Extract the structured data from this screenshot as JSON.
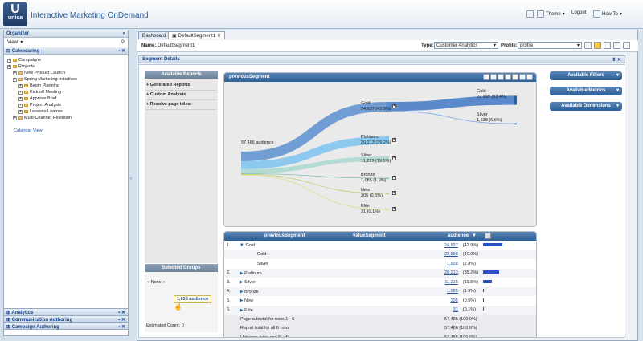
{
  "app": {
    "logo_letter": "U",
    "logo_word": "unica",
    "title": "Interactive Marketing OnDemand",
    "theme": "Theme",
    "logout": "Logout",
    "howto": "How To"
  },
  "organizer": {
    "title": "Organizer",
    "collapse": "«",
    "view": "View:",
    "section": "Calendaring",
    "tree": [
      {
        "label": "Campaigns",
        "indent": 0
      },
      {
        "label": "Projects",
        "indent": 0
      },
      {
        "label": "New Product Launch",
        "indent": 1
      },
      {
        "label": "Spring Marketing Initiatives",
        "indent": 1
      },
      {
        "label": "Begin Planning",
        "indent": 2
      },
      {
        "label": "Kick off Meeting",
        "indent": 2
      },
      {
        "label": "Approve Brief",
        "indent": 2
      },
      {
        "label": "Project Analysis",
        "indent": 2
      },
      {
        "label": "Lessons Learned",
        "indent": 2
      },
      {
        "label": "Multi-Channel Retention",
        "indent": 1
      }
    ],
    "calendar_link": "Calendar View",
    "bottom": [
      "Analytics",
      "Communication Authoring",
      "Campaign Authoring"
    ]
  },
  "tabs": [
    "Dashboard",
    "DefaultSegment1"
  ],
  "toolbar": {
    "name_label": "Name:",
    "name_value": "DefaultSegment1",
    "type_label": "Type:",
    "type_value": "Customer Analytics",
    "profile_label": "Profile:",
    "profile_value": "profile"
  },
  "segment_details": "Segment Details",
  "available_reports": {
    "title": "Available Reports",
    "items": [
      "Generated Reports",
      "Custom Analysis",
      "Resolve page titles:"
    ]
  },
  "selected_groups": {
    "title": "Selected Groups",
    "none": "« None »",
    "drag_label": "1,638 audience",
    "estimated": "Estimated Count: 0"
  },
  "right_panels": [
    "Available Filters",
    "Available Metrics",
    "Available Dimensions"
  ],
  "chart": {
    "title": "previousSegment",
    "root": "57,486 audience",
    "nodes": [
      {
        "name": "Gold",
        "value": "24,637 (42.9%)"
      },
      {
        "name": "Platinum",
        "value": "20,213 (35.2%)"
      },
      {
        "name": "Silver",
        "value": "11,215 (19.5%)"
      },
      {
        "name": "Bronze",
        "value": "1,085 (1.9%)"
      },
      {
        "name": "New",
        "value": "305 (0.5%)"
      },
      {
        "name": "Elite",
        "value": "31 (0.1%)"
      }
    ],
    "children": [
      {
        "name": "Gold",
        "value": "22,999 (93.4%)"
      },
      {
        "name": "Silver",
        "value": "1,638 (6.6%)"
      }
    ]
  },
  "chart_data": {
    "type": "sankey",
    "root": 57486,
    "nodes": [
      {
        "name": "Gold",
        "value": 24637
      },
      {
        "name": "Platinum",
        "value": 20213
      },
      {
        "name": "Silver",
        "value": 11215
      },
      {
        "name": "Bronze",
        "value": 1085
      },
      {
        "name": "New",
        "value": 305
      },
      {
        "name": "Elite",
        "value": 31
      }
    ],
    "children": {
      "Gold": [
        {
          "name": "Gold",
          "value": 22999
        },
        {
          "name": "Silver",
          "value": 1638
        }
      ]
    }
  },
  "table": {
    "headers": [
      "previousSegment",
      "valueSegment",
      "audience"
    ],
    "rows": [
      {
        "num": "1.",
        "seg": "Gold",
        "val": "",
        "aud": "24,637",
        "pct": "(42.9%)",
        "bar": 0.429,
        "expanded": true
      },
      {
        "num": "",
        "seg": "",
        "val": "Gold",
        "aud": "22,999",
        "pct": "(40.0%)",
        "bar": 0
      },
      {
        "num": "",
        "seg": "",
        "val": "Silver",
        "aud": "1,638",
        "pct": "(2.8%)",
        "bar": 0
      },
      {
        "num": "2.",
        "seg": "Platinum",
        "val": "",
        "aud": "20,213",
        "pct": "(35.2%)",
        "bar": 0.352
      },
      {
        "num": "3.",
        "seg": "Silver",
        "val": "",
        "aud": "11,215",
        "pct": "(19.5%)",
        "bar": 0.195
      },
      {
        "num": "4.",
        "seg": "Bronze",
        "val": "",
        "aud": "1,085",
        "pct": "(1.9%)",
        "bar": 0.019
      },
      {
        "num": "5.",
        "seg": "New",
        "val": "",
        "aud": "305",
        "pct": "(0.5%)",
        "bar": 0.005
      },
      {
        "num": "6.",
        "seg": "Elite",
        "val": "",
        "aud": "31",
        "pct": "(0.1%)",
        "bar": 0.001
      }
    ],
    "totals": [
      {
        "label": "Page subtotal for rows 1 - 6",
        "aud": "57,486 (100.0%)"
      },
      {
        "label": "Report total for all 6 rows",
        "aud": "57,486 (100.0%)"
      },
      {
        "label": "Universe (size and % of)",
        "aud": "57,486 (100.0%)"
      }
    ]
  }
}
